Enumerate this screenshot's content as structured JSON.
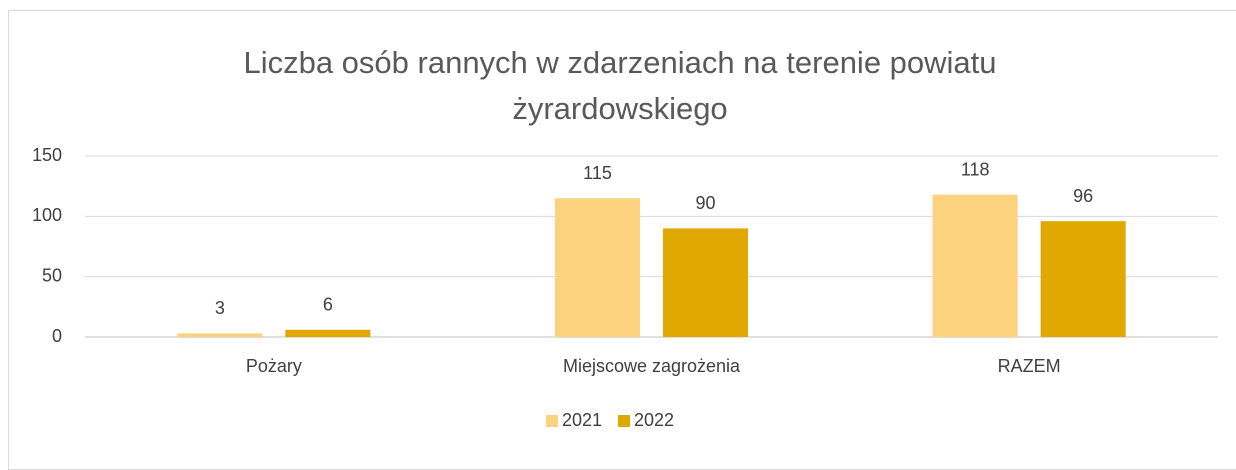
{
  "chart_data": {
    "type": "bar",
    "title": "Liczba osób rannych w zdarzeniach na terenie powiatu żyrardowskiego",
    "categories": [
      "Pożary",
      "Miejscowe zagrożenia",
      "RAZEM"
    ],
    "series": [
      {
        "name": "2021",
        "color": "#fdd27e",
        "values": [
          3,
          115,
          118
        ]
      },
      {
        "name": "2022",
        "color": "#e0a800",
        "values": [
          6,
          90,
          96
        ]
      }
    ],
    "ylim": [
      0,
      150
    ],
    "yticks": [
      0,
      50,
      100,
      150
    ],
    "grid": true,
    "legend": "bottom"
  }
}
